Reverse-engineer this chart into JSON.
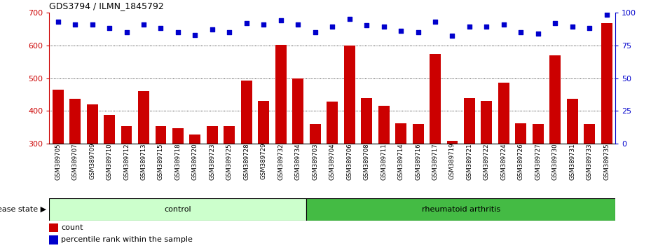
{
  "title": "GDS3794 / ILMN_1845792",
  "categories": [
    "GSM389705",
    "GSM389707",
    "GSM389709",
    "GSM389710",
    "GSM389712",
    "GSM389713",
    "GSM389715",
    "GSM389718",
    "GSM389720",
    "GSM389723",
    "GSM389725",
    "GSM389728",
    "GSM389729",
    "GSM389732",
    "GSM389734",
    "GSM389703",
    "GSM389704",
    "GSM389706",
    "GSM389708",
    "GSM389711",
    "GSM389714",
    "GSM389716",
    "GSM389717",
    "GSM389719",
    "GSM389721",
    "GSM389722",
    "GSM389724",
    "GSM389726",
    "GSM389727",
    "GSM389730",
    "GSM389731",
    "GSM389733",
    "GSM389735"
  ],
  "bar_values": [
    465,
    437,
    420,
    388,
    355,
    460,
    355,
    347,
    328,
    355,
    355,
    492,
    430,
    602,
    500,
    360,
    428,
    600,
    440,
    415,
    363,
    360,
    573,
    310,
    440,
    430,
    487,
    363,
    360,
    570,
    438,
    360,
    668
  ],
  "percentile_values": [
    93,
    91,
    91,
    88,
    85,
    91,
    88,
    85,
    83,
    87,
    85,
    92,
    91,
    94,
    91,
    85,
    89,
    95,
    90,
    89,
    86,
    85,
    93,
    82,
    89,
    89,
    91,
    85,
    84,
    92,
    89,
    88,
    98
  ],
  "bar_color": "#cc0000",
  "dot_color": "#0000cc",
  "ylim_left": [
    300,
    700
  ],
  "ylim_right": [
    0,
    100
  ],
  "yticks_left": [
    300,
    400,
    500,
    600,
    700
  ],
  "yticks_right": [
    0,
    25,
    50,
    75,
    100
  ],
  "control_count": 15,
  "rheumatoid_count": 18,
  "control_label": "control",
  "rheumatoid_label": "rheumatoid arthritis",
  "disease_state_label": "disease state",
  "legend_count_label": "count",
  "legend_percentile_label": "percentile rank within the sample",
  "control_color": "#ccffcc",
  "rheumatoid_color": "#44bb44",
  "xlabel_color": "#cc0000",
  "right_axis_color": "#0000cc",
  "background_color": "#ffffff",
  "xtick_bg_color": "#d8d8d8"
}
